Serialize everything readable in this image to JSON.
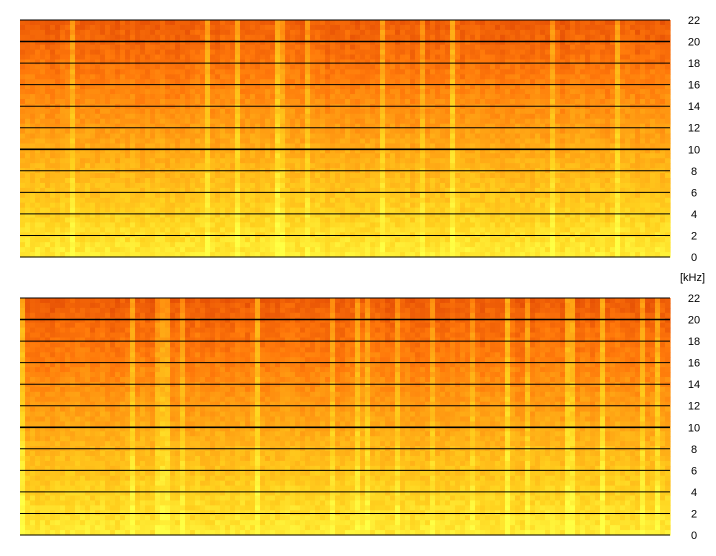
{
  "chart_data": [
    {
      "type": "heatmap",
      "title": "",
      "xlabel": "",
      "ylabel": "",
      "ylim": [
        0,
        22
      ],
      "yticks": [
        "0",
        "2",
        "4",
        "6",
        "8",
        "10",
        "12",
        "14",
        "16",
        "18",
        "20",
        "22"
      ],
      "grid": true,
      "colormap": [
        "#ffff44",
        "#ffd21e",
        "#ffa514",
        "#ff780a",
        "#e65005"
      ],
      "energy_by_frequency": {
        "low_khz": "red-orange",
        "mid_khz": "orange",
        "high_khz": "yellow"
      }
    },
    {
      "type": "heatmap",
      "title": "",
      "xlabel": "",
      "ylabel": "",
      "ylim": [
        0,
        22
      ],
      "yticks": [
        "0",
        "2",
        "4",
        "6",
        "8",
        "10",
        "12",
        "14",
        "16",
        "18",
        "20",
        "22"
      ],
      "grid": true,
      "colormap": [
        "#ffff44",
        "#ffd21e",
        "#ffa514",
        "#ff780a",
        "#e65005"
      ],
      "energy_by_frequency": {
        "low_khz": "red-orange",
        "mid_khz": "orange",
        "high_khz": "yellow"
      }
    }
  ],
  "unit_label": "[kHz]",
  "colors": {
    "grid": "#000000",
    "background": "#ffffff"
  }
}
